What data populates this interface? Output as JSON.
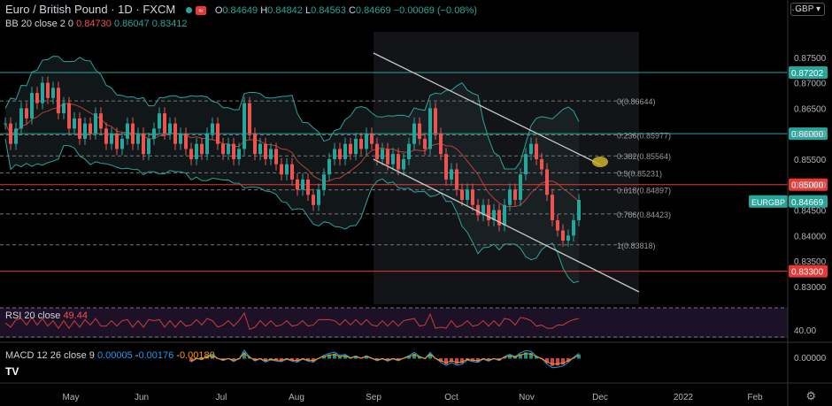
{
  "header": {
    "symbol": "Euro / British Pound · 1D · FXCM",
    "o_label": "O",
    "o": "0.84649",
    "h_label": "H",
    "h": "0.84842",
    "l_label": "L",
    "l": "0.84563",
    "c_label": "C",
    "c": "0.84669",
    "change": "−0.00069 (−0.08%)"
  },
  "bb": {
    "label": "BB 20 close 2 0",
    "basis": "0.84730",
    "upper": "0.86047",
    "lower": "0.83412"
  },
  "currency": "GBP",
  "rsi": {
    "label": "RSI 20 close",
    "value": "49.44",
    "axis_label": "40.00"
  },
  "macd": {
    "label": "MACD 12 26 close 9",
    "v1": "0.00005",
    "v2": "0.00176",
    "v3": "0.00180",
    "axis_label": "0.00000"
  },
  "colors": {
    "up": "#26a69a",
    "down": "#ef5350",
    "grid_h": "#2a2e39"
  },
  "chart_data": {
    "type": "candlestick",
    "ylim": [
      0.8265,
      0.88
    ],
    "y_ticks": [
      "0.87500",
      "0.87000",
      "0.86500",
      "0.86000",
      "0.85500",
      "0.85000",
      "0.84500",
      "0.84000",
      "0.83500",
      "0.83000"
    ],
    "y_tick_values": [
      0.875,
      0.87,
      0.865,
      0.86,
      0.855,
      0.85,
      0.845,
      0.84,
      0.835,
      0.83
    ],
    "x_ticks": [
      "May",
      "Jun",
      "Jul",
      "Aug",
      "Sep",
      "Oct",
      "Nov",
      "Dec",
      "2022",
      "Feb"
    ],
    "candles_close": [
      0.862,
      0.858,
      0.861,
      0.865,
      0.863,
      0.868,
      0.866,
      0.87,
      0.867,
      0.869,
      0.864,
      0.866,
      0.861,
      0.863,
      0.859,
      0.862,
      0.86,
      0.864,
      0.861,
      0.858,
      0.86,
      0.857,
      0.859,
      0.862,
      0.858,
      0.86,
      0.856,
      0.859,
      0.861,
      0.864,
      0.86,
      0.862,
      0.858,
      0.86,
      0.857,
      0.855,
      0.858,
      0.856,
      0.86,
      0.862,
      0.858,
      0.856,
      0.858,
      0.855,
      0.857,
      0.866,
      0.86,
      0.856,
      0.858,
      0.855,
      0.857,
      0.854,
      0.852,
      0.854,
      0.851,
      0.849,
      0.851,
      0.848,
      0.846,
      0.849,
      0.852,
      0.855,
      0.857,
      0.855,
      0.858,
      0.856,
      0.859,
      0.857,
      0.86,
      0.858,
      0.855,
      0.857,
      0.854,
      0.856,
      0.853,
      0.855,
      0.858,
      0.862,
      0.859,
      0.857,
      0.865,
      0.86,
      0.856,
      0.851,
      0.853,
      0.849,
      0.847,
      0.849,
      0.846,
      0.844,
      0.846,
      0.843,
      0.845,
      0.842,
      0.846,
      0.849,
      0.847,
      0.852,
      0.856,
      0.858,
      0.855,
      0.853,
      0.848,
      0.843,
      0.841,
      0.839,
      0.84,
      0.843,
      0.847
    ],
    "bb_basis_label": "0.84730",
    "fib_levels": [
      {
        "label": "0(0.86644)",
        "value": 0.86644
      },
      {
        "label": "0.236(0.85977)",
        "value": 0.85977
      },
      {
        "label": "0.382(0.85564)",
        "value": 0.85564
      },
      {
        "label": "0.5(0.85231)",
        "value": 0.85231
      },
      {
        "label": "0.618(0.84897)",
        "value": 0.84897
      },
      {
        "label": "0.786(0.84423)",
        "value": 0.84423
      },
      {
        "label": "1(0.83818)",
        "value": 0.83818
      }
    ],
    "h_lines": [
      {
        "label": "0.87202",
        "value": 0.87202,
        "color": "#26a69a"
      },
      {
        "label": "0.86000",
        "value": 0.86,
        "color": "#26a69a"
      },
      {
        "label": "0.85000",
        "value": 0.85,
        "color": "#e53935"
      },
      {
        "label": "0.83300",
        "value": 0.833,
        "color": "#e53935"
      }
    ],
    "last_price": {
      "label": "EURGBP",
      "value": "0.84669",
      "y": 0.84669
    }
  }
}
